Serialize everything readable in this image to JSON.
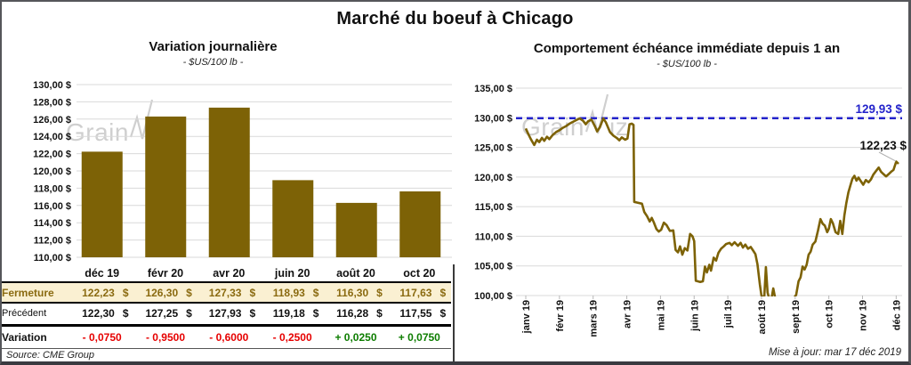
{
  "title": "Marché du boeuf à Chicago",
  "left_panel": {
    "title": "Variation journalière",
    "subtitle": "- $US/100 lb -",
    "source": "Source: CME Group",
    "table": {
      "columns": [
        "déc 19",
        "févr 20",
        "avr 20",
        "juin 20",
        "août 20",
        "oct 20"
      ],
      "rows": [
        {
          "label": "Fermeture",
          "style": "close",
          "currency": "$",
          "values": [
            "122,23",
            "126,30",
            "127,33",
            "118,93",
            "116,30",
            "117,63"
          ]
        },
        {
          "label": "Précédent",
          "style": "previous",
          "currency": "$",
          "values": [
            "122,30",
            "127,25",
            "127,93",
            "119,18",
            "116,28",
            "117,55"
          ]
        },
        {
          "label": "Variation",
          "style": "variation",
          "currency": "",
          "values": [
            "- 0,0750",
            "- 0,9500",
            "- 0,6000",
            "- 0,2500",
            "+ 0,0250",
            "+ 0,0750"
          ]
        }
      ]
    }
  },
  "right_panel": {
    "title": "Comportement échéance immédiate depuis 1 an",
    "subtitle": "- $US/100 lb -",
    "updated": "Mise à jour: mar 17 déc 2019"
  },
  "watermark": {
    "pre": "Grain",
    "post": "iz"
  },
  "colors": {
    "gold": "#7d6206",
    "gold_text": "#8a6a10",
    "close_row_bg": "#faf0d2",
    "negative": "#e60000",
    "positive": "#0d7d00",
    "ref_blue": "#2424cb",
    "gridline": "#d9d9d9",
    "leader": "#b0b0b0",
    "axis_text": "#111111"
  },
  "chart_data": [
    {
      "type": "bar",
      "title": "Variation journalière",
      "units": "$US/100 lb",
      "categories": [
        "déc 19",
        "févr 20",
        "avr 20",
        "juin 20",
        "août 20",
        "oct 20"
      ],
      "values": [
        122.23,
        126.3,
        127.33,
        118.93,
        116.3,
        117.63
      ],
      "ylim": [
        110,
        130
      ],
      "y_step": 2,
      "y_ticks": [
        "130,00 $",
        "128,00 $",
        "126,00 $",
        "124,00 $",
        "122,00 $",
        "120,00 $",
        "118,00 $",
        "116,00 $",
        "114,00 $",
        "112,00 $",
        "110,00 $"
      ],
      "grid": true,
      "bar_color": "#7d6206"
    },
    {
      "type": "line",
      "title": "Comportement échéance immédiate depuis 1 an",
      "units": "$US/100 lb",
      "x_ticks": [
        "janv 19",
        "févr 19",
        "mars 19",
        "avr 19",
        "mai 19",
        "juin 19",
        "juil 19",
        "août 19",
        "sept 19",
        "oct 19",
        "nov 19",
        "déc 19"
      ],
      "ylim": [
        100,
        135
      ],
      "y_step": 5,
      "y_ticks": [
        "135,00 $",
        "130,00 $",
        "125,00 $",
        "120,00 $",
        "115,00 $",
        "110,00 $",
        "105,00 $",
        "100,00 $"
      ],
      "grid": true,
      "line_color": "#7d6206",
      "ref_line": {
        "value": 129.93,
        "label": "129,93 $",
        "style": "dashed",
        "color": "#2424cb"
      },
      "last_point": {
        "value": 122.23,
        "label": "122,23 $"
      },
      "series": [
        [
          0,
          128.2
        ],
        [
          0.08,
          127.2
        ],
        [
          0.15,
          126.4
        ],
        [
          0.25,
          125.4
        ],
        [
          0.33,
          126.3
        ],
        [
          0.4,
          125.9
        ],
        [
          0.48,
          126.6
        ],
        [
          0.55,
          126.1
        ],
        [
          0.63,
          126.8
        ],
        [
          0.7,
          126.4
        ],
        [
          0.8,
          127.1
        ],
        [
          0.9,
          127.6
        ],
        [
          1.0,
          127.9
        ],
        [
          1.1,
          128.3
        ],
        [
          1.2,
          128.6
        ],
        [
          1.3,
          129.0
        ],
        [
          1.4,
          129.3
        ],
        [
          1.5,
          129.6
        ],
        [
          1.6,
          129.9
        ],
        [
          1.7,
          129.5
        ],
        [
          1.78,
          128.9
        ],
        [
          1.85,
          129.4
        ],
        [
          1.95,
          129.7
        ],
        [
          2.05,
          128.6
        ],
        [
          2.12,
          127.7
        ],
        [
          2.2,
          128.4
        ],
        [
          2.3,
          129.9
        ],
        [
          2.38,
          129.2
        ],
        [
          2.5,
          127.6
        ],
        [
          2.6,
          127.0
        ],
        [
          2.7,
          126.6
        ],
        [
          2.78,
          126.2
        ],
        [
          2.85,
          126.7
        ],
        [
          2.95,
          126.3
        ],
        [
          3.02,
          126.5
        ],
        [
          3.08,
          128.9
        ],
        [
          3.15,
          129.0
        ],
        [
          3.2,
          128.8
        ],
        [
          3.22,
          115.8
        ],
        [
          3.3,
          115.7
        ],
        [
          3.45,
          115.5
        ],
        [
          3.52,
          114.1
        ],
        [
          3.6,
          113.4
        ],
        [
          3.68,
          112.5
        ],
        [
          3.74,
          113.1
        ],
        [
          3.8,
          112.4
        ],
        [
          3.88,
          111.2
        ],
        [
          3.95,
          110.8
        ],
        [
          4.02,
          111.1
        ],
        [
          4.1,
          112.3
        ],
        [
          4.18,
          111.9
        ],
        [
          4.28,
          110.9
        ],
        [
          4.38,
          111.0
        ],
        [
          4.45,
          107.7
        ],
        [
          4.52,
          107.3
        ],
        [
          4.58,
          108.3
        ],
        [
          4.65,
          106.9
        ],
        [
          4.72,
          108.0
        ],
        [
          4.8,
          107.6
        ],
        [
          4.88,
          110.4
        ],
        [
          4.95,
          110.0
        ],
        [
          5.0,
          109.2
        ],
        [
          5.05,
          102.5
        ],
        [
          5.18,
          102.3
        ],
        [
          5.26,
          102.4
        ],
        [
          5.32,
          104.9
        ],
        [
          5.38,
          103.9
        ],
        [
          5.45,
          105.2
        ],
        [
          5.5,
          104.2
        ],
        [
          5.58,
          106.4
        ],
        [
          5.65,
          105.9
        ],
        [
          5.72,
          107.2
        ],
        [
          5.8,
          107.9
        ],
        [
          5.88,
          108.3
        ],
        [
          5.95,
          108.7
        ],
        [
          6.05,
          108.9
        ],
        [
          6.12,
          108.5
        ],
        [
          6.2,
          109.0
        ],
        [
          6.3,
          108.4
        ],
        [
          6.38,
          108.9
        ],
        [
          6.45,
          108.1
        ],
        [
          6.52,
          108.6
        ],
        [
          6.6,
          107.9
        ],
        [
          6.68,
          108.2
        ],
        [
          6.75,
          107.6
        ],
        [
          6.82,
          107.0
        ],
        [
          6.88,
          105.3
        ],
        [
          6.95,
          101.9
        ],
        [
          7.0,
          100.0
        ],
        [
          7.08,
          99.6
        ],
        [
          7.13,
          104.8
        ],
        [
          7.18,
          100.5
        ],
        [
          7.24,
          99.3
        ],
        [
          7.3,
          99.6
        ],
        [
          7.35,
          101.2
        ],
        [
          7.42,
          99.2
        ],
        [
          7.55,
          98.3
        ],
        [
          7.7,
          97.9
        ],
        [
          7.85,
          98.8
        ],
        [
          7.95,
          99.5
        ],
        [
          8.03,
          100.1
        ],
        [
          8.1,
          102.4
        ],
        [
          8.16,
          103.1
        ],
        [
          8.22,
          104.9
        ],
        [
          8.28,
          104.4
        ],
        [
          8.34,
          105.2
        ],
        [
          8.4,
          106.9
        ],
        [
          8.46,
          107.4
        ],
        [
          8.52,
          108.6
        ],
        [
          8.6,
          109.1
        ],
        [
          8.68,
          111.0
        ],
        [
          8.75,
          112.9
        ],
        [
          8.82,
          112.1
        ],
        [
          8.88,
          111.8
        ],
        [
          8.95,
          110.7
        ],
        [
          9.0,
          111.3
        ],
        [
          9.06,
          112.9
        ],
        [
          9.12,
          112.2
        ],
        [
          9.2,
          110.7
        ],
        [
          9.28,
          110.4
        ],
        [
          9.34,
          112.6
        ],
        [
          9.4,
          110.4
        ],
        [
          9.46,
          113.5
        ],
        [
          9.52,
          115.6
        ],
        [
          9.58,
          117.4
        ],
        [
          9.64,
          118.6
        ],
        [
          9.7,
          119.7
        ],
        [
          9.76,
          120.2
        ],
        [
          9.82,
          119.4
        ],
        [
          9.88,
          119.9
        ],
        [
          9.95,
          119.3
        ],
        [
          10.02,
          118.7
        ],
        [
          10.1,
          119.5
        ],
        [
          10.18,
          119.1
        ],
        [
          10.25,
          119.6
        ],
        [
          10.32,
          120.4
        ],
        [
          10.4,
          121.0
        ],
        [
          10.48,
          121.6
        ],
        [
          10.55,
          120.9
        ],
        [
          10.62,
          120.5
        ],
        [
          10.7,
          120.1
        ],
        [
          10.78,
          120.5
        ],
        [
          10.85,
          120.9
        ],
        [
          10.92,
          121.2
        ],
        [
          11.0,
          122.6
        ],
        [
          11.07,
          122.23
        ]
      ]
    }
  ]
}
